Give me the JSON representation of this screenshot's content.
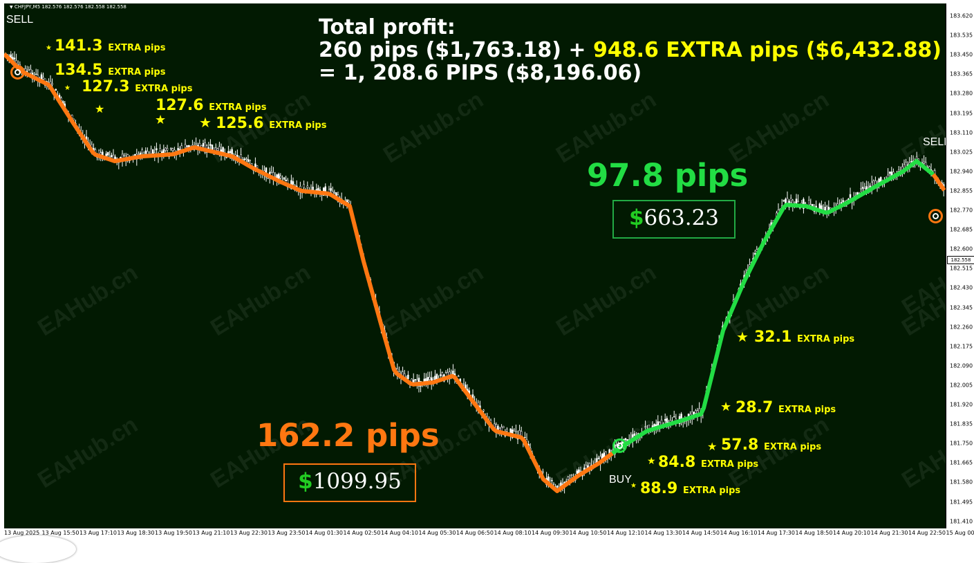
{
  "chart_header": {
    "menu_icon": "triangle-down-icon",
    "symbol": "CHFJPY,M5",
    "ohlc": "182.576 182.576 182.558 182.558"
  },
  "price_axis": {
    "ticks": [
      "183.620",
      "183.535",
      "183.450",
      "183.365",
      "183.280",
      "183.195",
      "183.110",
      "183.025",
      "182.940",
      "182.855",
      "182.770",
      "182.685",
      "182.600",
      "182.515",
      "182.430",
      "182.345",
      "182.260",
      "182.175",
      "182.090",
      "182.005",
      "181.920",
      "181.835",
      "181.750",
      "181.665",
      "181.580",
      "181.495",
      "181.410"
    ],
    "current_price": "182.558"
  },
  "time_axis": {
    "ticks": [
      "13 Aug 2025",
      "13 Aug 15:50",
      "13 Aug 17:10",
      "13 Aug 18:30",
      "13 Aug 19:50",
      "13 Aug 21:10",
      "13 Aug 22:30",
      "13 Aug 23:50",
      "14 Aug 01:30",
      "14 Aug 02:50",
      "14 Aug 04:10",
      "14 Aug 05:30",
      "14 Aug 06:50",
      "14 Aug 08:10",
      "14 Aug 09:30",
      "14 Aug 10:50",
      "14 Aug 12:10",
      "14 Aug 13:30",
      "14 Aug 14:50",
      "14 Aug 16:10",
      "14 Aug 17:30",
      "14 Aug 18:50",
      "14 Aug 20:10",
      "14 Aug 21:30",
      "14 Aug 22:50",
      "15 Aug 00:"
    ]
  },
  "summary": {
    "line1": "Total profit:",
    "line2_white": "260 pips ($1,763.18) + ",
    "line2_yellow": "948.6 EXTRA pips ($6,432.88)",
    "line3": "= 1, 208.6 PIPS ($8,196.06)"
  },
  "signals": {
    "sell_left": "SELL",
    "sell_right": "SELL",
    "buy": "BUY"
  },
  "trades": {
    "sell": {
      "pips": "162.2 pips",
      "currency": "$",
      "amount": "1099.95",
      "color": "#ff7711"
    },
    "buy": {
      "pips": "97.8 pips",
      "currency": "$",
      "amount": "663.23",
      "color": "#22dd44"
    }
  },
  "extra_pips_suffix": "EXTRA pips",
  "extra_pips": {
    "sell": [
      "141.3",
      "134.5",
      "127.3",
      "127.6",
      "125.6"
    ],
    "buy": [
      "32.1",
      "28.7",
      "57.8",
      "84.8",
      "88.9"
    ]
  },
  "star_glyph": "★",
  "watermark": "EAHub.cn",
  "colors": {
    "background": "#021a02",
    "ma_down": "#ff7711",
    "ma_up": "#22dd44",
    "highlight": "#ffff00",
    "candles": "#ffffff"
  }
}
